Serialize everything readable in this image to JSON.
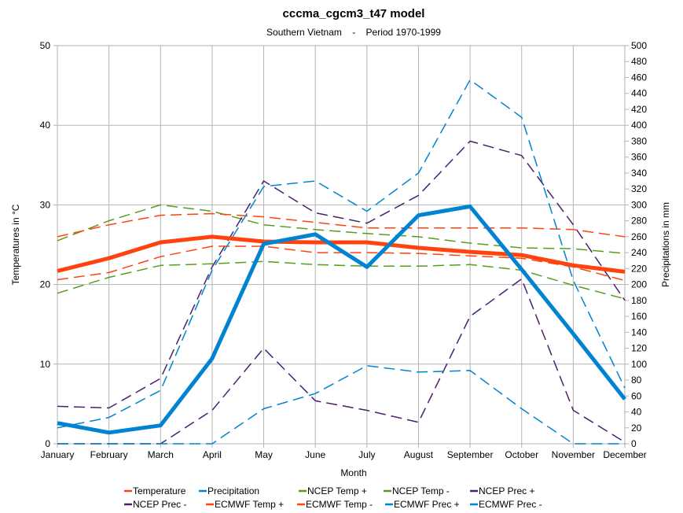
{
  "chart_data": {
    "type": "line",
    "title": "cccma_cgcm3_t47 model",
    "subtitle": "Southern Vietnam    -    Period 1970-1999",
    "xlabel": "Month",
    "ylabel": "Temperatures in °C",
    "y2label": "Precipitations in mm",
    "ylim": [
      0,
      50
    ],
    "y2lim": [
      0,
      500
    ],
    "yticks": [
      0,
      10,
      20,
      30,
      40,
      50
    ],
    "y2ticks": [
      0,
      20,
      40,
      60,
      80,
      100,
      120,
      140,
      160,
      180,
      200,
      220,
      240,
      260,
      280,
      300,
      320,
      340,
      360,
      380,
      400,
      420,
      440,
      460,
      480,
      500
    ],
    "grid": true,
    "legend_position": "bottom",
    "categories": [
      "January",
      "February",
      "March",
      "April",
      "May",
      "June",
      "July",
      "August",
      "September",
      "October",
      "November",
      "December"
    ],
    "series": [
      {
        "name": "Temperature",
        "axis": "left",
        "color": "#ff420e",
        "style": "solid",
        "width": 5,
        "values": [
          21.7,
          23.3,
          25.3,
          26.0,
          25.4,
          25.3,
          25.3,
          24.6,
          24.1,
          23.7,
          22.4,
          21.6
        ]
      },
      {
        "name": "Precipitation",
        "axis": "right",
        "color": "#0084d1",
        "style": "solid",
        "width": 5,
        "values": [
          26,
          14,
          23,
          107,
          251,
          263,
          222,
          287,
          298,
          219,
          138,
          56
        ]
      },
      {
        "name": "NCEP Temp +",
        "axis": "left",
        "color": "#579d1c",
        "style": "dashed",
        "width": 1.5,
        "values": [
          25.5,
          28.0,
          30.0,
          29.2,
          27.5,
          26.9,
          26.4,
          26.0,
          25.2,
          24.6,
          24.5,
          23.9
        ]
      },
      {
        "name": "NCEP Temp -",
        "axis": "left",
        "color": "#579d1c",
        "style": "dashed",
        "width": 1.5,
        "values": [
          18.9,
          20.9,
          22.4,
          22.6,
          22.9,
          22.5,
          22.3,
          22.3,
          22.5,
          21.8,
          19.9,
          18.2
        ]
      },
      {
        "name": "NCEP Prec +",
        "axis": "right",
        "color": "#4b1f6f",
        "style": "dashed",
        "width": 1.5,
        "values": [
          47,
          45,
          82,
          222,
          330,
          290,
          277,
          312,
          380,
          362,
          275,
          180
        ]
      },
      {
        "name": "NCEP Prec -",
        "axis": "right",
        "color": "#4b1f6f",
        "style": "dashed",
        "width": 1.5,
        "values": [
          0,
          0,
          0,
          42,
          120,
          54,
          42,
          27,
          160,
          207,
          42,
          2
        ]
      },
      {
        "name": "ECMWF Temp +",
        "axis": "left",
        "color": "#ff420e",
        "style": "dashed",
        "width": 1.5,
        "values": [
          26.0,
          27.5,
          28.7,
          28.9,
          28.5,
          27.8,
          27.1,
          27.1,
          27.1,
          27.1,
          26.9,
          26.0
        ]
      },
      {
        "name": "ECMWF Temp -",
        "axis": "left",
        "color": "#ff420e",
        "style": "dashed",
        "width": 1.5,
        "values": [
          20.6,
          21.5,
          23.5,
          24.8,
          24.8,
          24.0,
          24.0,
          23.9,
          23.6,
          23.3,
          22.2,
          20.5
        ]
      },
      {
        "name": "ECMWF Prec +",
        "axis": "right",
        "color": "#0084d1",
        "style": "dashed",
        "width": 1.5,
        "values": [
          20,
          33,
          67,
          218,
          323,
          330,
          292,
          340,
          457,
          410,
          205,
          70
        ]
      },
      {
        "name": "ECMWF Prec -",
        "axis": "right",
        "color": "#0084d1",
        "style": "dashed",
        "width": 1.5,
        "values": [
          0,
          0,
          0,
          0,
          44,
          63,
          98,
          90,
          92,
          44,
          0,
          0
        ]
      }
    ]
  }
}
